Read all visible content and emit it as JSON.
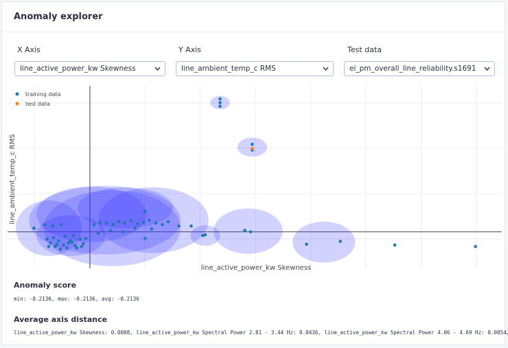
{
  "header": {
    "title": "Anomaly explorer"
  },
  "controls": [
    {
      "label": "X Axis",
      "value": "line_active_power_kw Skewness"
    },
    {
      "label": "Y Axis",
      "value": "line_ambient_temp_c RMS"
    },
    {
      "label": "Test data",
      "value": "ei_pm_overall_line_reliability.s1691"
    }
  ],
  "chart_data": {
    "type": "scatter",
    "x_label": "line_active_power_kw Skewness",
    "y_label": "line_ambient_temp_c RMS",
    "xlim": [
      -1,
      5
    ],
    "ylim": [
      -0.5,
      2
    ],
    "legend": "top-left",
    "series": [
      {
        "name": "training data",
        "color": "#1f77b4",
        "x": [
          -0.68,
          -0.55,
          -0.45,
          -0.35,
          -0.52,
          -0.48,
          -0.42,
          -0.38,
          -0.32,
          -0.28,
          -0.22,
          -0.18,
          -0.12,
          -0.08,
          -0.5,
          -0.44,
          -0.36,
          -0.3,
          -0.24,
          -0.16,
          -0.1,
          -0.05,
          -0.4,
          -0.26,
          -0.2,
          0.05,
          0.12,
          0.2,
          0.28,
          0.35,
          0.42,
          0.5,
          0.58,
          0.65,
          0.72,
          0.8,
          0.88,
          0.95,
          0.1,
          0.25,
          0.4,
          0.55,
          0.67,
          0.67,
          0.75,
          1.08,
          1.23,
          1.37,
          1.4,
          1.88,
          1.95,
          2.63,
          3.04,
          3.7,
          4.68,
          1.58,
          1.58,
          1.58,
          1.97,
          1.97
        ],
        "values": [
          0.05,
          0.1,
          0.08,
          0.1,
          -0.1,
          -0.15,
          -0.2,
          -0.12,
          -0.18,
          -0.22,
          -0.14,
          -0.19,
          -0.1,
          -0.16,
          -0.2,
          -0.08,
          -0.24,
          -0.06,
          -0.12,
          -0.22,
          -0.2,
          -0.09,
          -0.17,
          -0.15,
          -0.05,
          0.1,
          0.13,
          0.12,
          0.1,
          0.14,
          0.12,
          0.15,
          0.11,
          0.13,
          0.16,
          0.12,
          0.1,
          0.14,
          -0.02,
          0.02,
          0.0,
          0.05,
          0.28,
          -0.09,
          0.04,
          0.08,
          0.08,
          -0.05,
          -0.04,
          0.02,
          0.0,
          -0.17,
          -0.13,
          -0.18,
          -0.2,
          1.72,
          1.77,
          1.82,
          1.12,
          1.2
        ]
      },
      {
        "name": "test data",
        "color": "#ff7f0e",
        "x": [
          1.97
        ],
        "values": [
          1.14
        ]
      }
    ],
    "cluster_color": "#3333ff",
    "clusters": [
      {
        "x": -0.5,
        "y": 0.05,
        "rx": 0.4,
        "ry": 0.38
      },
      {
        "x": 0.18,
        "y": 0.16,
        "rx": 0.92,
        "ry": 0.47
      },
      {
        "x": 0.77,
        "y": 0.16,
        "rx": 0.67,
        "ry": 0.45
      },
      {
        "x": -0.23,
        "y": -0.05,
        "rx": 0.42,
        "ry": 0.28
      },
      {
        "x": 0.27,
        "y": 0.05,
        "rx": 0.83,
        "ry": 0.52
      },
      {
        "x": 0.02,
        "y": 0.24,
        "rx": 0.67,
        "ry": 0.38
      },
      {
        "x": 0.43,
        "y": 0.33,
        "rx": 0.58,
        "ry": 0.28
      },
      {
        "x": 1.4,
        "y": -0.05,
        "rx": 0.18,
        "ry": 0.14
      },
      {
        "x": 1.92,
        "y": 0.01,
        "rx": 0.42,
        "ry": 0.31
      },
      {
        "x": 2.84,
        "y": -0.14,
        "rx": 0.38,
        "ry": 0.28
      },
      {
        "x": 1.58,
        "y": 1.77,
        "rx": 0.12,
        "ry": 0.09
      },
      {
        "x": 1.97,
        "y": 1.16,
        "rx": 0.18,
        "ry": 0.13
      }
    ]
  },
  "anomaly_score": {
    "title": "Anomaly score",
    "text": "min: -0.2136, max: -0.2136, avg: -0.2136"
  },
  "axis_distance": {
    "title": "Average axis distance",
    "text": "line_active_power_kw Skewness: 0.0008, line_active_power_kw Spectral Power 2.81 - 3.44 Hz: 0.0436, line_active_power_kw Spectral Power 4.06 - 4.69 Hz: 0.0054…"
  }
}
